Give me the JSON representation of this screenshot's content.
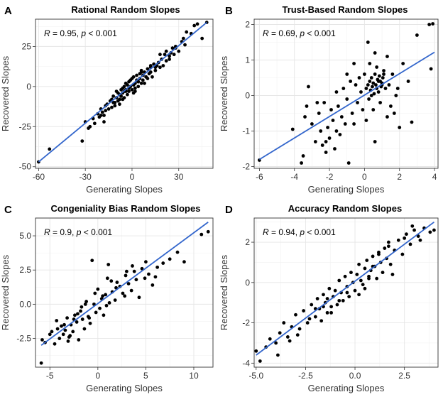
{
  "chart_data": [
    {
      "type": "scatter",
      "panel": "A",
      "title": "Rational Random Slopes",
      "xlabel": "Generating Slopes",
      "ylabel": "Recovered Slopes",
      "xlim": [
        -62,
        52
      ],
      "ylim": [
        -51,
        42
      ],
      "xticks": [
        -60,
        -30,
        0,
        30
      ],
      "yticks": [
        -50,
        -25,
        0,
        25
      ],
      "xtick_labels": [
        "-60",
        "-30",
        "0",
        "30"
      ],
      "ytick_labels": [
        "-50",
        "-25",
        "0",
        "25"
      ],
      "annotation": {
        "r_text": "R = 0.95, ",
        "p_text": "p < 0.001",
        "pos": "top-left"
      },
      "fit": {
        "x": [
          -60,
          48
        ],
        "y": [
          -47,
          40
        ]
      },
      "colors": {
        "points": "#000000",
        "fit": "#3366cc"
      },
      "grid": true,
      "points": {
        "x": [
          -60,
          -53,
          -32,
          -30,
          -27,
          -25,
          -24,
          -22,
          -21,
          -20,
          -19,
          -18,
          -17,
          -17,
          -16,
          -15,
          -14,
          -13,
          -13,
          -12,
          -12,
          -11,
          -10,
          -10,
          -9,
          -9,
          -8,
          -8,
          -7,
          -7,
          -6,
          -6,
          -5,
          -5,
          -5,
          -4,
          -4,
          -3,
          -3,
          -2,
          -2,
          -2,
          -1,
          -1,
          0,
          0,
          1,
          1,
          1,
          2,
          2,
          3,
          3,
          4,
          4,
          5,
          5,
          6,
          6,
          7,
          7,
          8,
          8,
          9,
          10,
          10,
          11,
          12,
          12,
          13,
          14,
          15,
          16,
          17,
          18,
          19,
          20,
          21,
          22,
          22,
          24,
          25,
          26,
          27,
          28,
          30,
          32,
          33,
          35,
          38,
          40,
          42,
          45,
          48,
          -28,
          -20,
          -11,
          -4,
          4,
          12,
          18,
          24,
          34,
          -18,
          -6,
          6,
          15,
          -8,
          2,
          9,
          28
        ],
        "y": [
          -47,
          -39,
          -34,
          -22,
          -25,
          -20,
          -23,
          -17,
          -19,
          -14,
          -16,
          -18,
          -12,
          -15,
          -11,
          -14,
          -9,
          -13,
          -8,
          -10,
          -6,
          -12,
          -7,
          -3,
          -9,
          -4,
          -5,
          -8,
          -2,
          -6,
          -4,
          -1,
          -3,
          -7,
          0,
          -2,
          2,
          -5,
          1,
          -3,
          3,
          -1,
          0,
          4,
          -2,
          5,
          1,
          -4,
          6,
          2,
          -1,
          4,
          7,
          0,
          3,
          8,
          5,
          2,
          10,
          4,
          7,
          9,
          2,
          6,
          11,
          5,
          8,
          12,
          9,
          6,
          14,
          10,
          13,
          15,
          12,
          17,
          13,
          20,
          16,
          22,
          19,
          21,
          24,
          20,
          25,
          22,
          28,
          30,
          34,
          33,
          38,
          39,
          30,
          40,
          -26,
          -18,
          -10,
          -3,
          3,
          13,
          20,
          17,
          26,
          -22,
          -8,
          9,
          12,
          -11,
          -3,
          6,
          24
        ]
      }
    },
    {
      "type": "scatter",
      "panel": "B",
      "title": "Trust-Based Random Slopes",
      "xlabel": "Generating Slopes",
      "ylabel": "Recovered Slopes",
      "xlim": [
        -6.3,
        4.2
      ],
      "ylim": [
        -2.05,
        2.15
      ],
      "xticks": [
        -6,
        -4,
        -2,
        0,
        2,
        4
      ],
      "yticks": [
        -2,
        -1,
        0,
        1,
        2
      ],
      "xtick_labels": [
        "-6",
        "-4",
        "-2",
        "0",
        "2",
        "4"
      ],
      "ytick_labels": [
        "-2",
        "-1",
        "0",
        "1",
        "2"
      ],
      "annotation": {
        "r_text": "R = 0.69, ",
        "p_text": "p < 0.001",
        "pos": "top-left"
      },
      "fit": {
        "x": [
          -6,
          4
        ],
        "y": [
          -1.8,
          1.22
        ]
      },
      "colors": {
        "points": "#000000",
        "fit": "#3366cc"
      },
      "grid": true,
      "points": {
        "x": [
          -6,
          -4.1,
          -3.6,
          -3.5,
          -3.4,
          -3.2,
          -3.0,
          -2.8,
          -2.6,
          -2.5,
          -2.4,
          -2.3,
          -2.2,
          -2.1,
          -2.0,
          -1.9,
          -1.8,
          -1.7,
          -1.6,
          -1.5,
          -1.4,
          -1.3,
          -1.2,
          -1.1,
          -1.0,
          -0.9,
          -0.8,
          -0.7,
          -0.6,
          -0.5,
          -0.4,
          -0.3,
          -0.2,
          -0.1,
          0,
          0.1,
          0.2,
          0.25,
          0.3,
          0.35,
          0.4,
          0.45,
          0.5,
          0.55,
          0.6,
          0.65,
          0.7,
          0.75,
          0.8,
          0.85,
          0.9,
          0.95,
          1.0,
          1.05,
          1.1,
          1.2,
          1.3,
          1.4,
          1.5,
          1.6,
          1.7,
          1.8,
          2.0,
          2.2,
          2.5,
          2.7,
          3.0,
          3.7,
          3.8,
          3.9,
          -3.3,
          -2.7,
          -1.6,
          -0.6,
          0.3,
          0.6,
          0.9,
          1.3,
          1.9,
          -2.2,
          -1.0,
          0.1,
          0.5,
          0.7,
          1.1,
          0.4,
          0.8,
          0.2,
          0.6,
          1.0
        ],
        "y": [
          -1.82,
          -0.95,
          -1.9,
          -1.7,
          -0.6,
          0.25,
          -0.8,
          -1.3,
          -0.5,
          -1.0,
          -1.4,
          -0.2,
          -1.6,
          -0.9,
          -1.2,
          -0.4,
          -0.7,
          -1.5,
          0.1,
          -0.3,
          -1.1,
          -0.6,
          0.2,
          -0.8,
          -0.1,
          -1.9,
          0.4,
          -0.5,
          0.9,
          0.3,
          -0.2,
          0.5,
          0.1,
          -0.4,
          0.6,
          0.2,
          0.3,
          -0.1,
          0.4,
          0.15,
          0.5,
          0.25,
          0.35,
          0.05,
          0.6,
          0.3,
          0.2,
          0.45,
          0.1,
          0.55,
          0.4,
          0.25,
          0.35,
          0.5,
          0.7,
          0.2,
          1.1,
          0.3,
          -0.3,
          0.6,
          -0.5,
          0.0,
          -0.9,
          0.9,
          0.4,
          -0.75,
          1.7,
          2.0,
          0.75,
          2.02,
          -0.3,
          -0.2,
          -1.0,
          -0.8,
          0.9,
          1.2,
          -0.2,
          -0.6,
          0.2,
          -1.3,
          0.6,
          -0.7,
          -0.4,
          0.8,
          0.6,
          0.0,
          0.4,
          1.5,
          -1.3,
          0.3
        ]
      }
    },
    {
      "type": "scatter",
      "panel": "C",
      "title": "Congeniality Bias Random Slopes",
      "xlabel": "Generating Slopes",
      "ylabel": "Recovered Slopes",
      "xlim": [
        -6.5,
        12.0
      ],
      "ylim": [
        -4.6,
        6.3
      ],
      "xticks": [
        -5,
        0,
        5,
        10
      ],
      "yticks": [
        -2.5,
        0.0,
        2.5,
        5.0
      ],
      "xtick_labels": [
        "-5",
        "0",
        "5",
        "10"
      ],
      "ytick_labels": [
        "-2.5",
        "0.0",
        "2.5",
        "5.0"
      ],
      "annotation": {
        "r_text": "R = 0.9, ",
        "p_text": "p < 0.001",
        "pos": "top-left"
      },
      "fit": {
        "x": [
          -5.9,
          11.5
        ],
        "y": [
          -3.0,
          6.0
        ]
      },
      "colors": {
        "points": "#000000",
        "fit": "#3366cc"
      },
      "grid": true,
      "points": {
        "x": [
          -5.9,
          -5.8,
          -5.5,
          -5.0,
          -4.8,
          -4.5,
          -4.2,
          -4.0,
          -3.8,
          -3.6,
          -3.4,
          -3.2,
          -3.0,
          -2.8,
          -2.6,
          -2.4,
          -2.2,
          -2.0,
          -1.8,
          -1.6,
          -1.4,
          -1.2,
          -1.0,
          -0.8,
          -0.6,
          -0.4,
          -0.2,
          0.0,
          0.2,
          0.4,
          0.6,
          0.8,
          1.0,
          1.2,
          1.5,
          1.8,
          2.0,
          2.3,
          2.6,
          2.9,
          3.2,
          3.5,
          3.8,
          4.0,
          4.3,
          4.6,
          5.0,
          5.3,
          5.7,
          6.2,
          6.8,
          7.5,
          8.3,
          9.0,
          10.8,
          11.5,
          -4.3,
          -3.1,
          -2.5,
          -1.7,
          -0.9,
          0.5,
          1.1,
          1.9,
          2.8,
          3.6,
          4.9,
          6.0,
          -3.5,
          -2.1,
          -0.3,
          1.4,
          3.0,
          -1.3,
          -2.9,
          0.9
        ],
        "y": [
          -4.3,
          -2.6,
          -2.8,
          -2.2,
          -2.0,
          -2.9,
          -1.8,
          -2.5,
          -1.6,
          -2.2,
          -1.9,
          -1.0,
          -2.4,
          -1.5,
          -2.0,
          -0.8,
          -1.3,
          -2.6,
          -0.5,
          -1.1,
          -1.8,
          0.2,
          -0.9,
          -1.4,
          3.2,
          0.0,
          -0.6,
          1.1,
          -0.3,
          0.4,
          -0.8,
          0.7,
          1.9,
          0.1,
          0.9,
          0.3,
          1.6,
          1.3,
          0.8,
          2.1,
          1.5,
          1.0,
          2.4,
          1.8,
          0.5,
          2.6,
          3.1,
          2.2,
          1.4,
          2.7,
          3.0,
          3.3,
          3.8,
          3.1,
          5.1,
          5.3,
          -1.2,
          -2.7,
          -1.1,
          -0.2,
          -1.0,
          0.6,
          2.9,
          1.2,
          0.6,
          2.8,
          1.9,
          2.0,
          -1.5,
          -0.7,
          0.8,
          1.7,
          2.4,
          0.0,
          -2.3,
          -0.1
        ]
      }
    },
    {
      "type": "scatter",
      "panel": "D",
      "title": "Accuracy Random Slopes",
      "xlabel": "Generating Slopes",
      "ylabel": "Recovered Slopes",
      "xlim": [
        -5.1,
        4.2
      ],
      "ylim": [
        -4.2,
        3.2
      ],
      "xticks": [
        -5.0,
        -2.5,
        0.0,
        2.5
      ],
      "yticks": [
        -4,
        -2,
        0,
        2
      ],
      "xtick_labels": [
        "-5.0",
        "-2.5",
        "0.0",
        "2.5"
      ],
      "ytick_labels": [
        "-4",
        "-2",
        "0",
        "2"
      ],
      "annotation": {
        "r_text": "R = 0.94, ",
        "p_text": "p < 0.001",
        "pos": "top-left"
      },
      "fit": {
        "x": [
          -5.0,
          4.0
        ],
        "y": [
          -3.6,
          3.0
        ]
      },
      "colors": {
        "points": "#000000",
        "fit": "#3366cc"
      },
      "grid": true,
      "points": {
        "x": [
          -5.0,
          -4.8,
          -4.5,
          -4.3,
          -4.0,
          -3.8,
          -3.6,
          -3.4,
          -3.2,
          -3.0,
          -2.8,
          -2.6,
          -2.4,
          -2.2,
          -2.0,
          -1.9,
          -1.8,
          -1.7,
          -1.6,
          -1.5,
          -1.4,
          -1.3,
          -1.2,
          -1.1,
          -1.0,
          -0.9,
          -0.8,
          -0.7,
          -0.6,
          -0.5,
          -0.4,
          -0.3,
          -0.2,
          -0.1,
          0.0,
          0.1,
          0.2,
          0.3,
          0.4,
          0.5,
          0.6,
          0.7,
          0.8,
          0.9,
          1.0,
          1.1,
          1.2,
          1.3,
          1.4,
          1.5,
          1.6,
          1.7,
          1.8,
          2.0,
          2.2,
          2.4,
          2.6,
          2.8,
          3.0,
          3.2,
          3.5,
          3.8,
          4.0,
          -3.9,
          -2.9,
          -2.3,
          -1.6,
          -0.8,
          0.2,
          0.9,
          1.7,
          2.5,
          3.3,
          -3.3,
          -1.2,
          0.5,
          1.9,
          -2.0,
          -0.4,
          1.2,
          2.9,
          -1.4,
          0.7
        ],
        "y": [
          -3.4,
          -3.9,
          -3.2,
          -2.8,
          -3.0,
          -2.5,
          -2.0,
          -2.7,
          -2.2,
          -1.6,
          -2.3,
          -1.4,
          -2.0,
          -1.1,
          -1.7,
          -0.8,
          -1.3,
          -1.9,
          -0.6,
          -1.0,
          -1.5,
          -0.3,
          -1.2,
          -0.7,
          -0.4,
          -1.1,
          0.1,
          -0.5,
          -0.9,
          0.3,
          -0.2,
          -0.7,
          0.5,
          0.0,
          -0.4,
          0.4,
          0.9,
          0.1,
          -0.1,
          0.7,
          1.1,
          0.3,
          0.6,
          1.3,
          0.8,
          0.2,
          1.5,
          1.0,
          0.5,
          1.7,
          1.2,
          2.0,
          0.9,
          1.6,
          2.1,
          1.4,
          2.4,
          1.9,
          2.6,
          2.3,
          2.7,
          2.5,
          2.6,
          -3.6,
          -2.6,
          -1.8,
          -1.2,
          -0.9,
          -0.6,
          0.8,
          1.8,
          2.2,
          2.1,
          -2.9,
          -1.5,
          -0.3,
          0.4,
          -1.3,
          -0.5,
          1.4,
          2.8,
          -0.8,
          0.2
        ]
      }
    }
  ]
}
